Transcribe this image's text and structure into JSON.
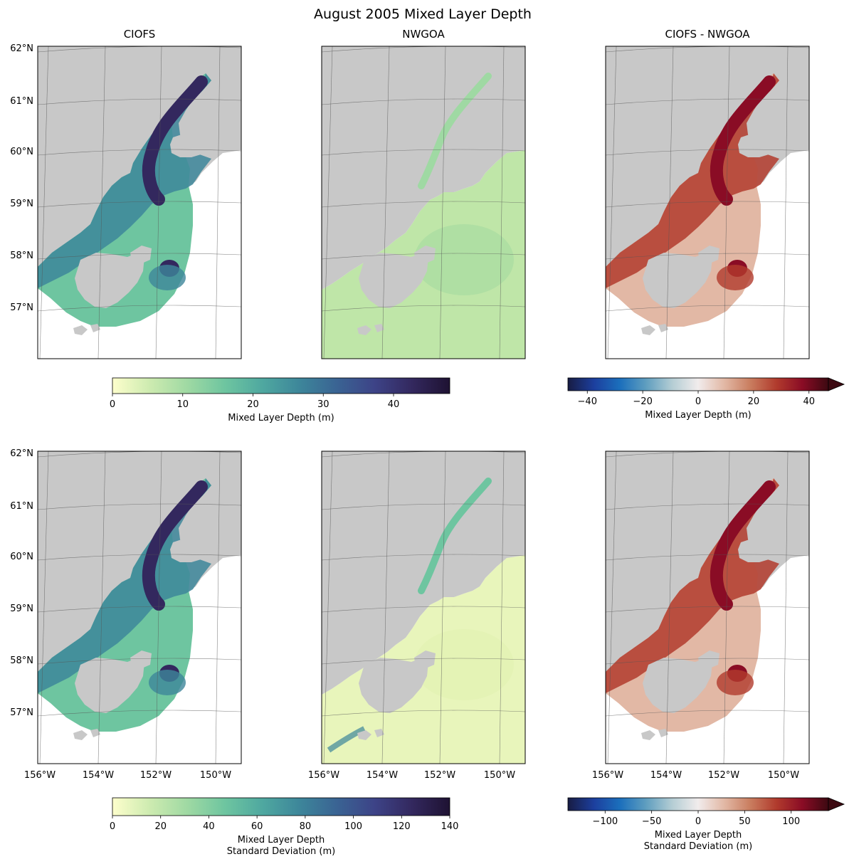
{
  "figure": {
    "title": "August 2005 Mixed Layer Depth"
  },
  "panels": [
    {
      "title": "CIOFS",
      "row": 0,
      "col": 0,
      "field": "ciofs_mean"
    },
    {
      "title": "NWGOA",
      "row": 0,
      "col": 1,
      "field": "nwgoa_mean"
    },
    {
      "title": "CIOFS - NWGOA",
      "row": 0,
      "col": 2,
      "field": "diff_mean"
    },
    {
      "title": "",
      "row": 1,
      "col": 0,
      "field": "ciofs_std"
    },
    {
      "title": "",
      "row": 1,
      "col": 1,
      "field": "nwgoa_std"
    },
    {
      "title": "",
      "row": 1,
      "col": 2,
      "field": "diff_std"
    }
  ],
  "lat_labels": [
    "62°N",
    "61°N",
    "60°N",
    "59°N",
    "58°N",
    "57°N"
  ],
  "lon_labels": [
    "156°W",
    "154°W",
    "152°W",
    "150°W"
  ],
  "colorbars": [
    {
      "name": "mean-seq",
      "label": "Mixed Layer Depth (m)",
      "ticks": [
        "0",
        "10",
        "20",
        "30",
        "40"
      ],
      "range": [
        0,
        48
      ],
      "cmap": "deep",
      "extend": false
    },
    {
      "name": "mean-div",
      "label": "Mixed Layer Depth (m)",
      "ticks": [
        "−40",
        "−20",
        "0",
        "20",
        "40"
      ],
      "range": [
        -47,
        47
      ],
      "cmap": "balance",
      "extend": true
    },
    {
      "name": "std-seq",
      "label": "Mixed Layer Depth",
      "label2": "Standard Deviation (m)",
      "ticks": [
        "0",
        "20",
        "40",
        "60",
        "80",
        "100",
        "120",
        "140"
      ],
      "range": [
        0,
        140
      ],
      "cmap": "deep",
      "extend": false
    },
    {
      "name": "std-div",
      "label": "Mixed Layer Depth",
      "label2": "Standard Deviation (m)",
      "ticks": [
        "−100",
        "−50",
        "0",
        "50",
        "100"
      ],
      "range": [
        -140,
        140
      ],
      "cmap": "balance",
      "extend": true
    }
  ],
  "colors": {
    "land": "#c8c8c8",
    "ocean_empty": "#ffffff",
    "deep_cmap": [
      "#fdfecc",
      "#cdebb0",
      "#9fd9a3",
      "#6ec5a0",
      "#4fa8a0",
      "#3d869a",
      "#3a6393",
      "#3d4387",
      "#33285e",
      "#1e1232"
    ],
    "balance_cmap": [
      "#181c43",
      "#1c3f9e",
      "#1b6fbc",
      "#5f9ebf",
      "#b4cdd4",
      "#f1ecec",
      "#e2b8a5",
      "#c97d5f",
      "#b13b2d",
      "#8a0c25",
      "#3c0911"
    ]
  }
}
